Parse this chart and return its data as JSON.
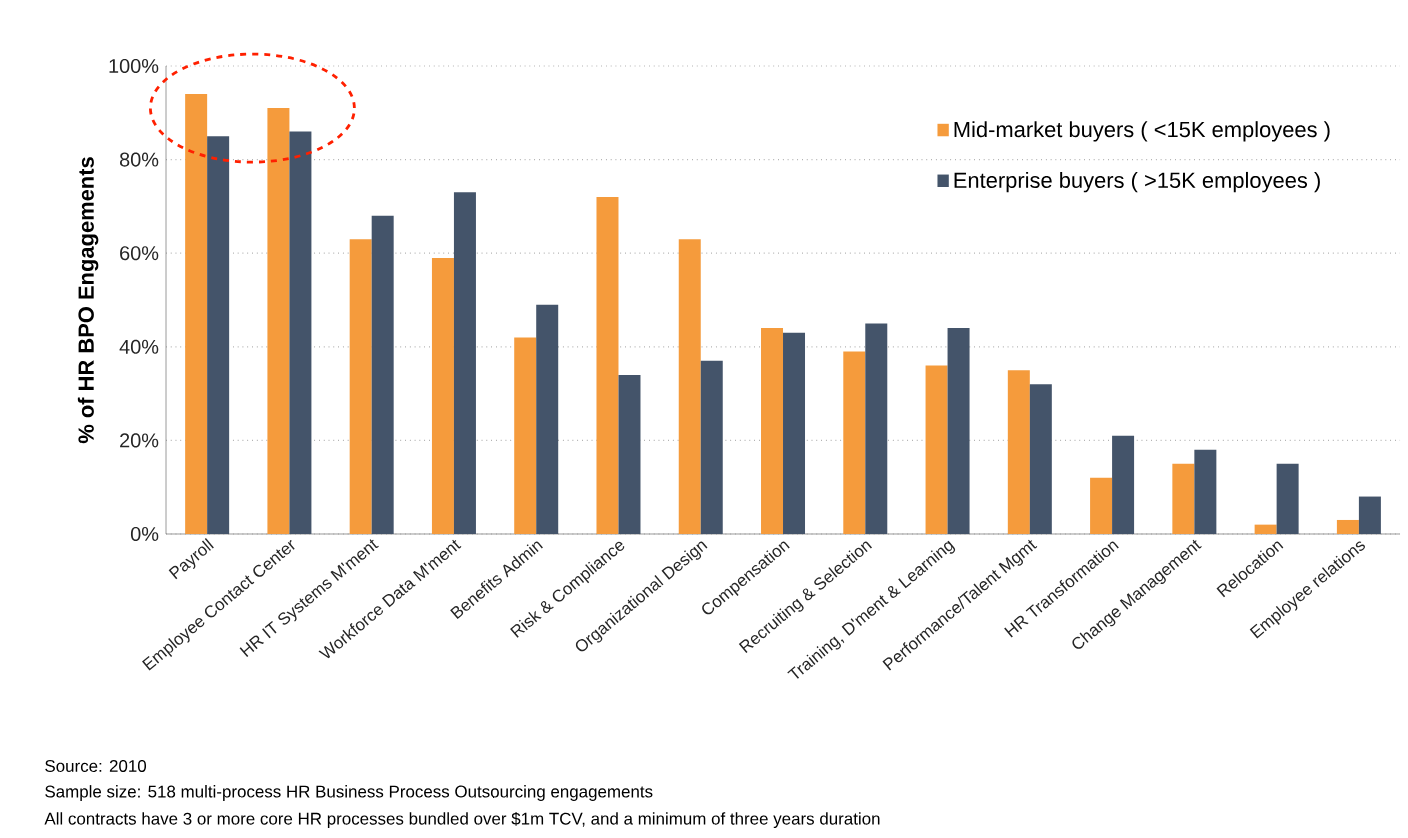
{
  "chart_data": {
    "type": "bar",
    "ylabel": "% of HR BPO Engagements",
    "categories": [
      "Payroll",
      "Employee Contact Center",
      "HR IT Systems M'ment",
      "Workforce Data M'ment",
      "Benefits Admin",
      "Risk & Compliance",
      "Organizational Design",
      "Compensation",
      "Recruiting & Selection",
      "Training, D'ment & Learning",
      "Performance/Talent Mgmt",
      "HR Transformation",
      "Change Management",
      "Relocation",
      "Employee relations"
    ],
    "series": [
      {
        "name": "Mid-market buyers ( <15K employees )",
        "color": "#f59b3c",
        "values": [
          94,
          91,
          63,
          59,
          42,
          72,
          63,
          44,
          39,
          36,
          35,
          12,
          15,
          2,
          3
        ]
      },
      {
        "name": "Enterprise buyers ( >15K employees )",
        "color": "#44546a",
        "values": [
          85,
          86,
          68,
          73,
          49,
          34,
          37,
          43,
          45,
          44,
          32,
          21,
          18,
          15,
          8
        ]
      }
    ],
    "ylim": [
      0,
      100
    ],
    "yticks": [
      {
        "value": 0,
        "label": "0%"
      },
      {
        "value": 20,
        "label": "20%"
      },
      {
        "value": 40,
        "label": "40%"
      },
      {
        "value": 60,
        "label": "60%"
      },
      {
        "value": 80,
        "label": "80%"
      },
      {
        "value": 100,
        "label": "100%"
      }
    ],
    "grid": "y",
    "legend": "top right",
    "annotations": [
      "Source: 2010",
      "Sample size:  518 multi-process HR Business Process Outsourcing engagements",
      "All contracts have 3 or more core HR processes bundled over $1m TCV, and a minimum of three years duration"
    ]
  }
}
